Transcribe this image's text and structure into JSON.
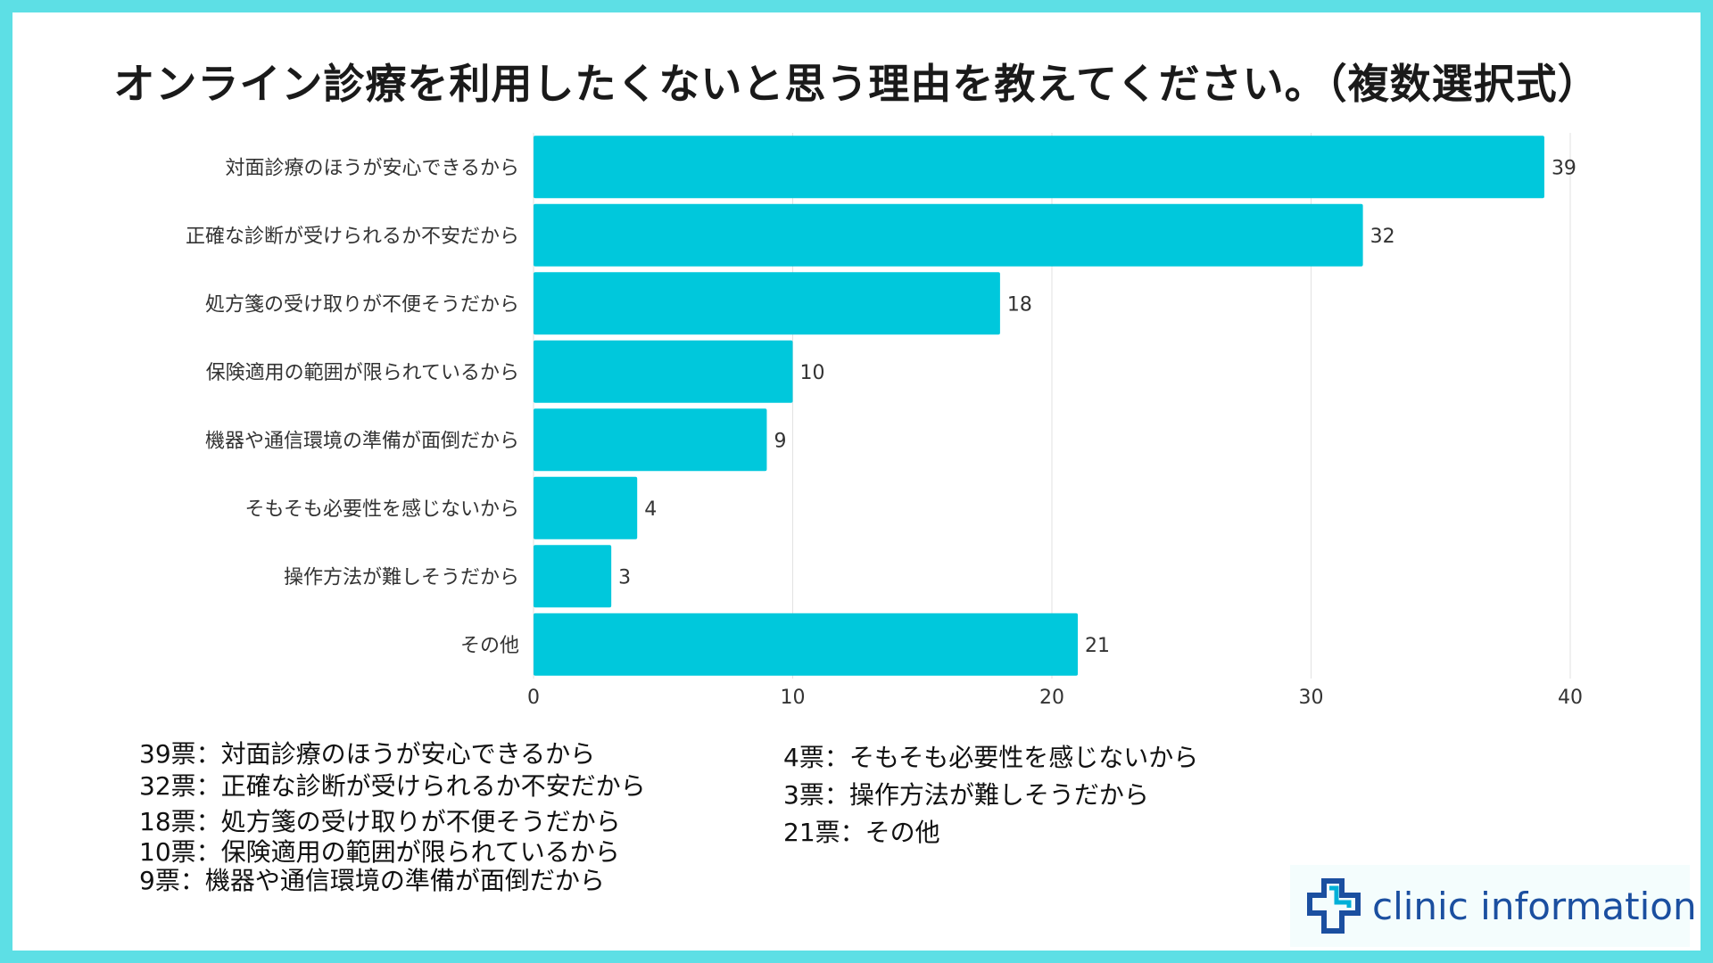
{
  "title": "オンライン診療を利用したくないと思う理由を教えてください。（複数選択式）",
  "colors": {
    "bar": "#00c8dc",
    "border": "#5ddfe5",
    "grid": "#e2e2e2",
    "logo": "#1b4fa0"
  },
  "chart_data": {
    "type": "bar",
    "orientation": "horizontal",
    "title": "オンライン診療を利用したくないと思う理由を教えてください。（複数選択式）",
    "categories": [
      "対面診療のほうが安心できるから",
      "正確な診断が受けられるか不安だから",
      "処方箋の受け取りが不便そうだから",
      "保険適用の範囲が限られているから",
      "機器や通信環境の準備が面倒だから",
      "そもそも必要性を感じないから",
      "操作方法が難しそうだから",
      "その他"
    ],
    "values": [
      39,
      32,
      18,
      10,
      9,
      4,
      3,
      21
    ],
    "xlim": [
      0,
      40
    ],
    "xticks": [
      0,
      10,
      20,
      30,
      40
    ],
    "xlabel": "",
    "ylabel": "",
    "grid": true
  },
  "summary": {
    "left": [
      "39票：対面診療のほうが安心できるから",
      "32票：正確な診断が受けられるか不安だから",
      "18票：処方箋の受け取りが不便そうだから",
      "10票：保険適用の範囲が限られているから",
      "9票：機器や通信環境の準備が面倒だから"
    ],
    "right": [
      "4票：そもそも必要性を感じないから",
      "3票：操作方法が難しそうだから",
      "21票：その他"
    ]
  },
  "logo": {
    "text": "clinic information",
    "icon": "medical-cross-icon"
  }
}
